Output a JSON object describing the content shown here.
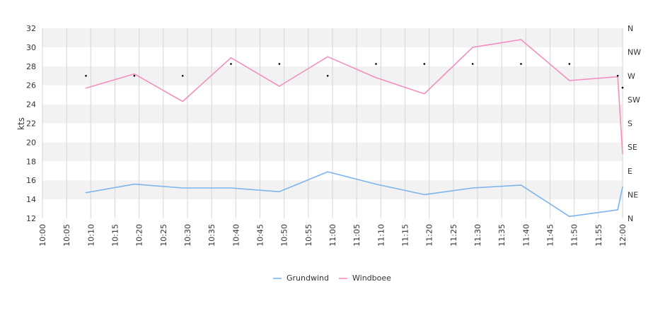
{
  "chart_data": {
    "type": "line",
    "ylabel": "kts",
    "ylim": [
      12,
      32
    ],
    "y_ticks": [
      "12",
      "14",
      "16",
      "18",
      "20",
      "22",
      "24",
      "26",
      "28",
      "30",
      "32"
    ],
    "x_ticks": [
      "10:00",
      "10:05",
      "10:10",
      "10:15",
      "10:20",
      "10:25",
      "10:30",
      "10:35",
      "10:40",
      "10:45",
      "10:50",
      "10:55",
      "11:00",
      "11:05",
      "11:10",
      "11:15",
      "11:20",
      "11:25",
      "11:30",
      "11:35",
      "11:40",
      "11:45",
      "11:50",
      "11:55",
      "12:00"
    ],
    "xlim": [
      "10:00",
      "12:00"
    ],
    "direction_ticks": [
      "N",
      "NE",
      "E",
      "SE",
      "S",
      "SW",
      "W",
      "NW",
      "N"
    ],
    "grid": true,
    "legend_position": "bottom-center",
    "series": [
      {
        "name": "Grundwind",
        "color": "#7cb5ec",
        "x": [
          "10:09",
          "10:19",
          "10:29",
          "10:39",
          "10:49",
          "10:59",
          "11:09",
          "11:19",
          "11:29",
          "11:39",
          "11:49",
          "11:59",
          "12:00"
        ],
        "values": [
          14.7,
          15.6,
          15.2,
          15.2,
          14.8,
          16.9,
          15.6,
          14.5,
          15.2,
          15.5,
          12.2,
          12.9,
          15.3
        ]
      },
      {
        "name": "Windboee",
        "color": "#f28fbf",
        "x": [
          "10:09",
          "10:19",
          "10:29",
          "10:39",
          "10:49",
          "10:59",
          "11:09",
          "11:19",
          "11:29",
          "11:39",
          "11:49",
          "11:59",
          "12:00"
        ],
        "values": [
          25.7,
          27.2,
          24.3,
          28.9,
          25.9,
          29.0,
          26.8,
          25.1,
          30.0,
          30.8,
          26.5,
          26.9,
          18.8
        ]
      }
    ],
    "direction_points": {
      "color": "#000000",
      "x": [
        "10:09",
        "10:19",
        "10:29",
        "10:39",
        "10:49",
        "10:59",
        "11:09",
        "11:19",
        "11:29",
        "11:39",
        "11:49",
        "11:59",
        "12:00"
      ],
      "values": [
        "W",
        "W",
        "W",
        "WNW",
        "WNW",
        "W",
        "WNW",
        "WNW",
        "WNW",
        "WNW",
        "WNW",
        "W",
        "WSW"
      ]
    }
  }
}
